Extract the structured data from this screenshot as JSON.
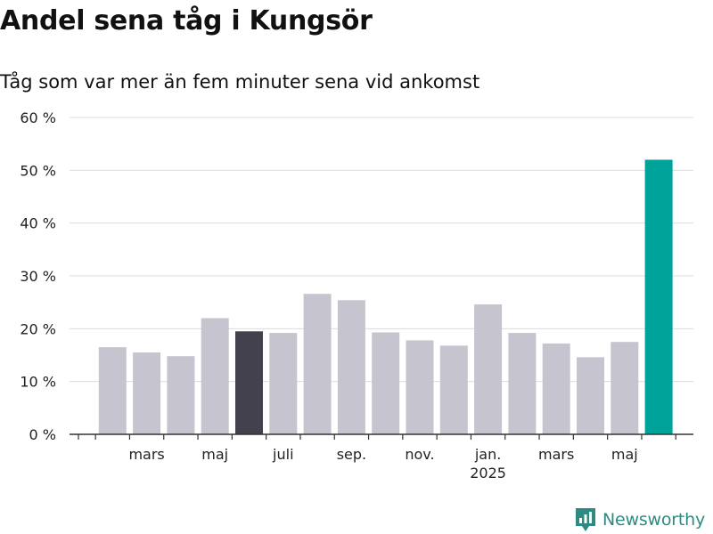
{
  "header": {
    "title": "Andel sena tåg i Kungsör",
    "subtitle": "Tåg som var mer än fem minuter sena vid ankomst"
  },
  "brand": {
    "name": "Newsworthy",
    "color": "#2e8b82"
  },
  "chart_data": {
    "type": "bar",
    "categories": [
      "2024-02",
      "2024-03",
      "2024-04",
      "2024-05",
      "2024-06",
      "2024-07",
      "2024-08",
      "2024-09",
      "2024-10",
      "2024-11",
      "2024-12",
      "2025-01",
      "2025-02",
      "2025-03",
      "2025-04",
      "2025-05",
      "2025-06"
    ],
    "values": [
      16.5,
      15.5,
      14.8,
      22,
      19.5,
      19.2,
      26.6,
      25.4,
      19.3,
      17.8,
      16.8,
      24.6,
      19.2,
      17.2,
      14.6,
      17.5,
      52
    ],
    "highlight": {
      "2024-06": "#42414d",
      "2025-06": "#00a39a"
    },
    "bar_color": "#c6c5cf",
    "ylim": [
      0,
      60
    ],
    "y_ticks": [
      0,
      10,
      20,
      30,
      40,
      50,
      60
    ],
    "y_tick_labels": [
      "0 %",
      "10 %",
      "20 %",
      "30 %",
      "40 %",
      "50 %",
      "60 %"
    ],
    "x_tick_labels": [
      {
        "at": "2024-03",
        "label": "mars"
      },
      {
        "at": "2024-05",
        "label": "maj"
      },
      {
        "at": "2024-07",
        "label": "juli"
      },
      {
        "at": "2024-09",
        "label": "sep."
      },
      {
        "at": "2024-11",
        "label": "nov."
      },
      {
        "at": "2025-01",
        "label": "jan.",
        "sublabel": "2025"
      },
      {
        "at": "2025-03",
        "label": "mars"
      },
      {
        "at": "2025-05",
        "label": "maj"
      }
    ],
    "grid": true,
    "xlabel": "",
    "ylabel": ""
  }
}
